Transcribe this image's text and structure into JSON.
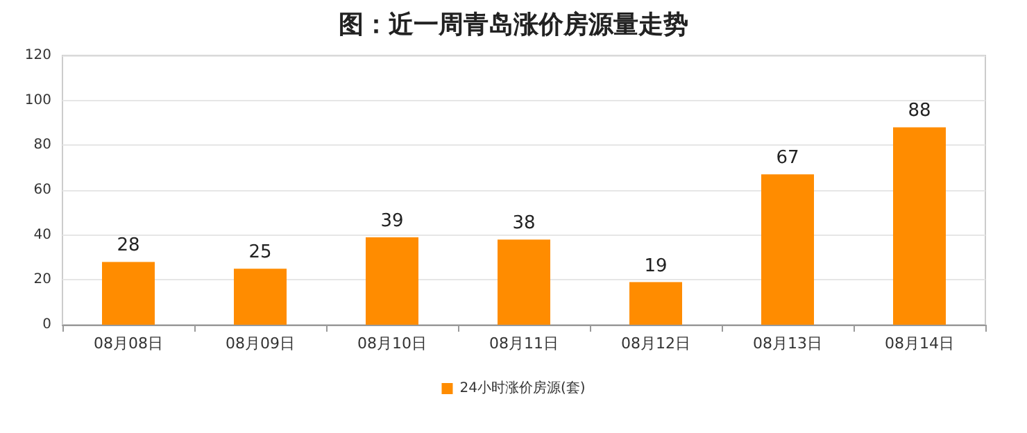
{
  "chart_data": {
    "type": "bar",
    "title": "图：近一周青岛涨价房源量走势",
    "categories": [
      "08月08日",
      "08月09日",
      "08月10日",
      "08月11日",
      "08月12日",
      "08月13日",
      "08月14日"
    ],
    "series": [
      {
        "name": "24小时涨价房源(套)",
        "color": "#ff8c00",
        "values": [
          28,
          25,
          39,
          38,
          19,
          67,
          88
        ]
      }
    ],
    "ylim": [
      0,
      120
    ],
    "yticks": [
      0,
      20,
      40,
      60,
      80,
      100,
      120
    ],
    "grid": "y",
    "legend": "bottom",
    "data_labels": true
  }
}
